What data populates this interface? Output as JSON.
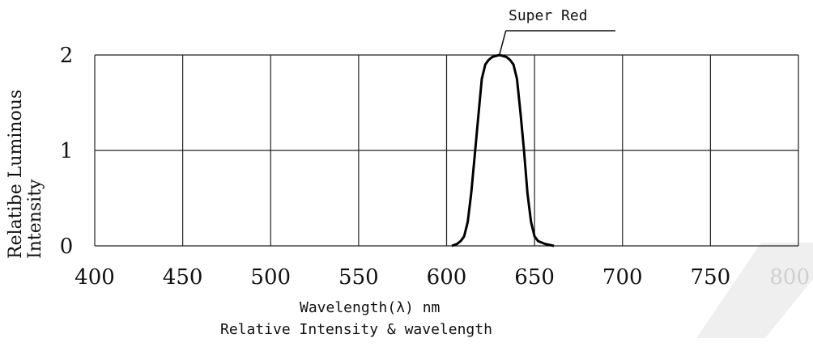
{
  "chart_data": {
    "type": "line",
    "title": "Relative Intensity & wavelength",
    "xlabel": "Wavelength(λ) nm",
    "ylabel_lines": [
      "Relatibe Luminous",
      "Intensity"
    ],
    "x_ticks": [
      "400",
      "450",
      "500",
      "550",
      "600",
      "650",
      "700",
      "750",
      "800"
    ],
    "y_ticks": [
      "0",
      "1",
      "2"
    ],
    "xlim": [
      400,
      800
    ],
    "ylim": [
      0,
      2
    ],
    "grid": true,
    "series": [
      {
        "name": "Super Red",
        "color": "#000000",
        "points": [
          [
            603,
            0.0
          ],
          [
            606,
            0.02
          ],
          [
            608,
            0.05
          ],
          [
            610,
            0.1
          ],
          [
            612,
            0.25
          ],
          [
            614,
            0.55
          ],
          [
            616,
            0.95
          ],
          [
            618,
            1.35
          ],
          [
            620,
            1.75
          ],
          [
            622,
            1.9
          ],
          [
            624,
            1.95
          ],
          [
            626,
            1.98
          ],
          [
            628,
            1.99
          ],
          [
            630,
            2.0
          ],
          [
            632,
            1.99
          ],
          [
            634,
            1.98
          ],
          [
            636,
            1.95
          ],
          [
            638,
            1.9
          ],
          [
            640,
            1.75
          ],
          [
            642,
            1.4
          ],
          [
            644,
            1.0
          ],
          [
            646,
            0.55
          ],
          [
            648,
            0.25
          ],
          [
            650,
            0.1
          ],
          [
            652,
            0.05
          ],
          [
            656,
            0.02
          ],
          [
            661,
            0.0
          ]
        ]
      }
    ],
    "annotations": [
      {
        "text": "Super Red",
        "x": 630,
        "y": 2.0
      }
    ],
    "watermark_text": "800"
  }
}
